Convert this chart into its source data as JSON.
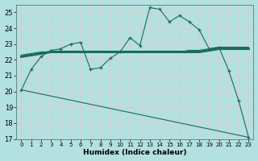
{
  "xlabel": "Humidex (Indice chaleur)",
  "bg_color": "#b3e0e0",
  "grid_color": "#e8c8c8",
  "line_color": "#1a6b5a",
  "xlim": [
    -0.5,
    23.5
  ],
  "ylim": [
    17,
    25.5
  ],
  "yticks": [
    17,
    18,
    19,
    20,
    21,
    22,
    23,
    24,
    25
  ],
  "xticks": [
    0,
    1,
    2,
    3,
    4,
    5,
    6,
    7,
    8,
    9,
    10,
    11,
    12,
    13,
    14,
    15,
    16,
    17,
    18,
    19,
    20,
    21,
    22,
    23
  ],
  "curve1_x": [
    0,
    1,
    2,
    3,
    4,
    5,
    6,
    7,
    8,
    9,
    10,
    11,
    12,
    13,
    14,
    15,
    16,
    17,
    18,
    19,
    20,
    21,
    22,
    23
  ],
  "curve1_y": [
    20.1,
    21.4,
    22.2,
    22.6,
    22.7,
    23.0,
    23.1,
    21.4,
    21.5,
    22.1,
    22.5,
    23.4,
    22.9,
    25.3,
    25.2,
    24.4,
    24.8,
    24.4,
    23.9,
    22.7,
    22.8,
    21.3,
    19.4,
    17.1
  ],
  "curve2_x": [
    0,
    1,
    2,
    3,
    4,
    5,
    6,
    7,
    8,
    9,
    10,
    11,
    12,
    13,
    14,
    15,
    16,
    17,
    18,
    19,
    20,
    21,
    22,
    23
  ],
  "curve2_y": [
    22.2,
    22.3,
    22.4,
    22.5,
    22.5,
    22.5,
    22.5,
    22.5,
    22.5,
    22.5,
    22.5,
    22.5,
    22.5,
    22.5,
    22.5,
    22.5,
    22.5,
    22.5,
    22.5,
    22.6,
    22.7,
    22.7,
    22.7,
    22.7
  ],
  "curve3_x": [
    0,
    1,
    2,
    3,
    4,
    5,
    6,
    7,
    8,
    9,
    10,
    11,
    12,
    13,
    14,
    15,
    16,
    17,
    18,
    19,
    20,
    21,
    22,
    23
  ],
  "curve3_y": [
    22.3,
    22.4,
    22.5,
    22.5,
    22.5,
    22.5,
    22.5,
    22.5,
    22.5,
    22.5,
    22.5,
    22.5,
    22.5,
    22.5,
    22.5,
    22.5,
    22.5,
    22.6,
    22.6,
    22.7,
    22.8,
    22.8,
    22.8,
    22.8
  ],
  "curve4_x": [
    0,
    23
  ],
  "curve4_y": [
    20.1,
    17.1
  ]
}
